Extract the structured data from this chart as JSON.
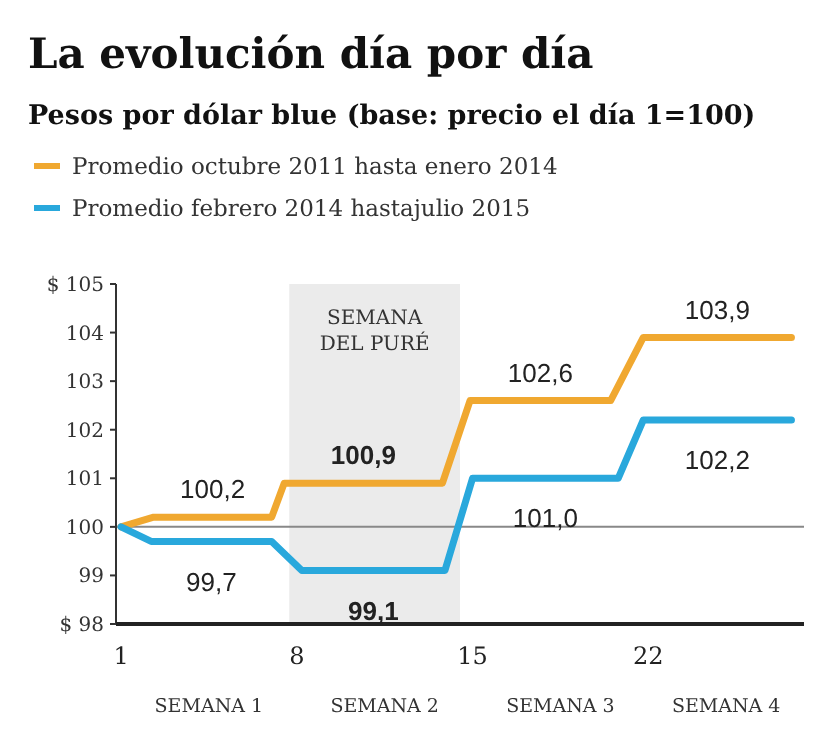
{
  "chart_data": {
    "type": "line",
    "title": "La evolución día por día",
    "subtitle": "Pesos por dólar blue (base: precio el día 1=100)",
    "series": [
      {
        "name": "Promedio octubre 2011 hasta enero 2014",
        "color": "#f0a830",
        "x": [
          1,
          2.3,
          7,
          7.5,
          13.8,
          14.9,
          20.5,
          21.8,
          27.7
        ],
        "values": [
          100,
          100.2,
          100.2,
          100.9,
          100.9,
          102.6,
          102.6,
          103.9,
          103.9
        ],
        "value_labels": [
          null,
          "100,2",
          null,
          "100,9",
          null,
          "102,6",
          null,
          "103,9",
          null
        ]
      },
      {
        "name": "Promedio febrero 2014 hastajulio 2015",
        "color": "#29a8dc",
        "x": [
          1,
          2.2,
          7,
          8.2,
          13.9,
          15,
          20.8,
          21.8,
          27.7
        ],
        "values": [
          100,
          99.7,
          99.7,
          99.1,
          99.1,
          101.0,
          101.0,
          102.2,
          102.2
        ],
        "value_labels": [
          null,
          "99,7",
          null,
          "99,1",
          null,
          "101,0",
          null,
          "102,2",
          null
        ]
      }
    ],
    "xlim": [
      0.8,
      28.2
    ],
    "xticks": [
      1,
      8,
      15,
      22
    ],
    "ylim": [
      98,
      105
    ],
    "yticks": [
      {
        "value": 98,
        "label": "$ 98"
      },
      99,
      100,
      101,
      102,
      103,
      104,
      {
        "value": 105,
        "label": "$ 105"
      }
    ],
    "ref_lines": [
      {
        "axis": "y",
        "value": 100,
        "color": "#888888"
      }
    ],
    "bands": [
      {
        "axis": "x",
        "from": 7.7,
        "to": 14.5,
        "label": "SEMANA\nDEL PURÉ",
        "color": "#ebebeb"
      }
    ],
    "annotations": [
      "SEMANA 1",
      "SEMANA 2",
      "SEMANA 3",
      "SEMANA 4"
    ],
    "legend": "top left",
    "marker": "none",
    "line_style": "solid"
  }
}
